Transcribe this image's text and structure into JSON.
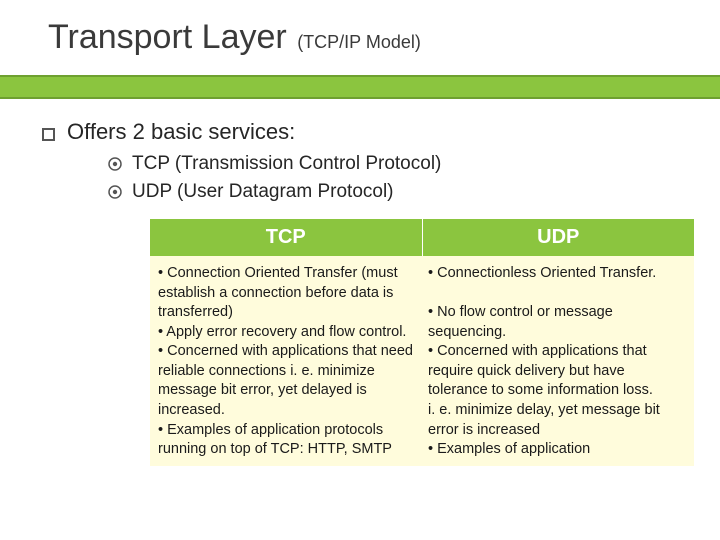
{
  "title": {
    "main": "Transport Layer",
    "sub": "(TCP/IP Model)"
  },
  "colors": {
    "bar": "#8bc53f",
    "bar_border": "#6ea030",
    "table_header_bg": "#8bc53f",
    "table_header_fg": "#ffffff",
    "table_body_bg": "#fffcdc",
    "text": "#262626"
  },
  "list": {
    "level1": "Offers 2 basic services:",
    "level2": [
      "TCP (Transmission Control Protocol)",
      "UDP (User Datagram Protocol)"
    ]
  },
  "table": {
    "headers": [
      "TCP",
      "UDP"
    ],
    "cells": [
      "• Connection Oriented Transfer (must establish a connection before data is transferred)\n• Apply error recovery and flow control.\n• Concerned with applications that need reliable connections i. e. minimize message bit error, yet delayed is increased.\n• Examples of application protocols running on top of TCP: HTTP, SMTP",
      "• Connectionless Oriented Transfer.\n\n• No flow control or message sequencing.\n• Concerned with  applications that require quick delivery but have tolerance to some information loss.\ni. e. minimize delay, yet message bit error is increased\n• Examples of application"
    ]
  }
}
